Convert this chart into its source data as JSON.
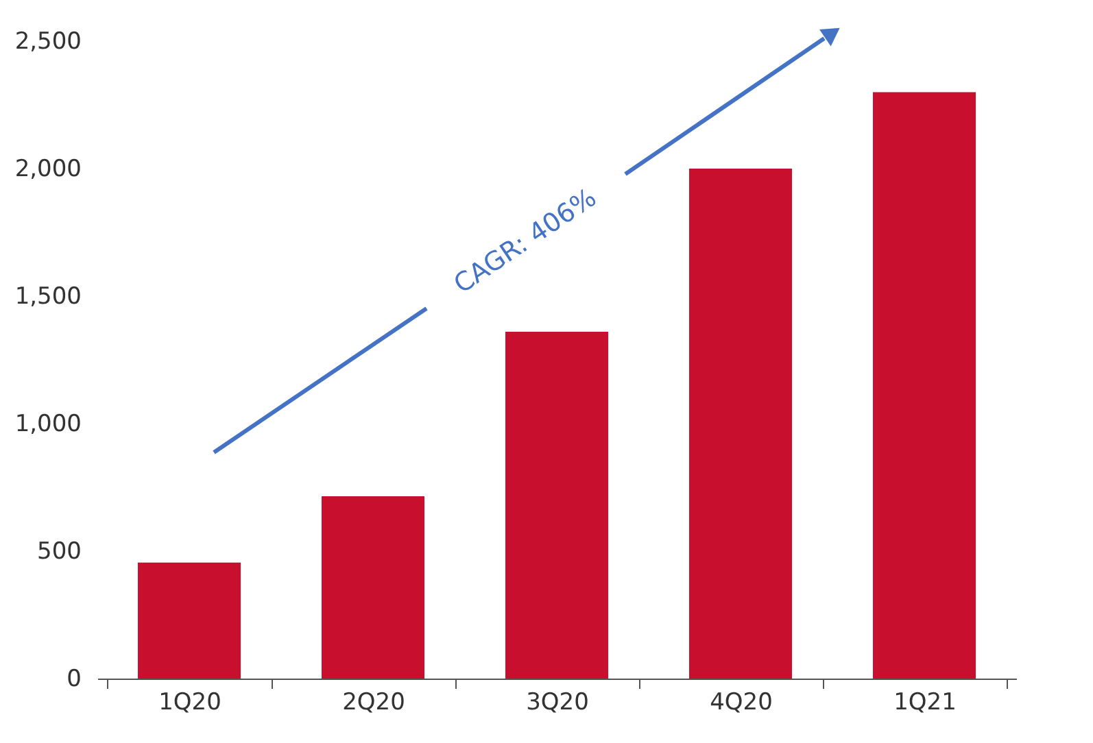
{
  "chart_data": {
    "type": "bar",
    "categories": [
      "1Q20",
      "2Q20",
      "3Q20",
      "4Q20",
      "1Q21"
    ],
    "values": [
      455,
      715,
      1360,
      2000,
      2300
    ],
    "color": "#c8102e",
    "ylim": [
      0,
      2500
    ],
    "yticks": [
      0,
      500,
      {
        "value": 1000,
        "label": "1,000"
      },
      {
        "value": 1500,
        "label": "1,500"
      },
      {
        "value": 2000,
        "label": "2,000"
      },
      {
        "value": 2500,
        "label": "2,500"
      }
    ],
    "grid": false,
    "annotations": [
      "CAGR: 406%"
    ]
  }
}
